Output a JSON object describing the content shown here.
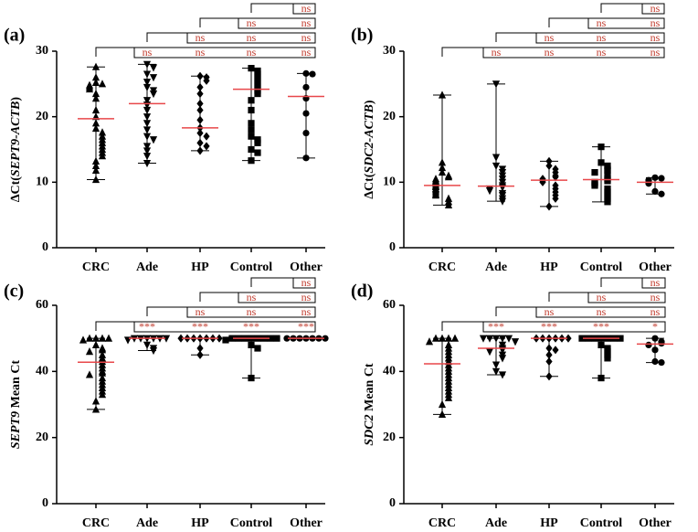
{
  "chart_data": [
    {
      "type": "dot-plot",
      "label": "(a)",
      "ylabel": [
        {
          "text": "∆Ct(",
          "italic": false
        },
        {
          "text": "SEPT9-ACTB",
          "italic": true
        },
        {
          "text": ")",
          "italic": false
        }
      ],
      "categories": [
        "CRC",
        "Ade",
        "HP",
        "Control",
        "Other"
      ],
      "markers": [
        "triangle-up",
        "triangle-down",
        "diamond",
        "square",
        "circle"
      ],
      "points": [
        [
          27.6,
          26,
          25.2,
          25,
          24.8,
          24.5,
          24.2,
          23.5,
          22.8,
          21,
          20,
          19,
          18.2,
          17.6,
          17,
          16.5,
          16,
          15.5,
          15,
          14.5,
          14,
          13.2,
          12.5,
          11.8,
          10.4
        ],
        [
          28,
          27.5,
          26.5,
          26,
          25.3,
          24.5,
          24,
          23.5,
          22.5,
          21.8,
          21,
          20,
          19,
          18,
          17,
          16.5,
          15.5,
          14.8,
          14,
          12.9
        ],
        [
          26.2,
          26,
          25.5,
          24.5,
          23.5,
          22,
          21,
          19.5,
          18.3,
          17.5,
          17,
          16,
          15.5,
          14.8
        ],
        [
          27.4,
          27,
          26.5,
          26,
          25.5,
          25,
          24.5,
          24,
          23.5,
          22.5,
          21,
          19,
          18,
          17,
          16.5,
          16,
          15,
          14.5,
          13.3
        ],
        [
          26.6,
          26.5,
          24.5,
          22.8,
          20.5,
          17.5,
          13.7
        ]
      ],
      "means": [
        19.7,
        22,
        18.3,
        24.2,
        23.1
      ],
      "mins": [
        10.4,
        12.9,
        14.8,
        13.3,
        13.7
      ],
      "maxs": [
        27.6,
        28,
        26.2,
        27.4,
        26.6
      ],
      "ylim": [
        0,
        30
      ],
      "yticks": [
        0,
        10,
        20,
        30
      ],
      "point_color": "#000000",
      "mean_color": "#e8474a",
      "significance_color": "#c0392b",
      "comparisons": [
        {
          "from": 0,
          "labels": [
            "ns",
            "ns",
            "ns",
            "ns"
          ]
        },
        {
          "from": 1,
          "labels": [
            "ns",
            "ns",
            "ns"
          ]
        },
        {
          "from": 2,
          "labels": [
            "ns",
            "ns"
          ]
        },
        {
          "from": 3,
          "labels": [
            "ns"
          ]
        }
      ]
    },
    {
      "type": "dot-plot",
      "label": "(b)",
      "ylabel": [
        {
          "text": "∆Ct(",
          "italic": false
        },
        {
          "text": "SDC2-ACTB",
          "italic": true
        },
        {
          "text": ")",
          "italic": false
        }
      ],
      "categories": [
        "CRC",
        "Ade",
        "HP",
        "Control",
        "Other"
      ],
      "markers": [
        "triangle-up",
        "triangle-down",
        "diamond",
        "square",
        "circle"
      ],
      "points": [
        [
          23.3,
          13,
          12.2,
          11.5,
          11,
          10.8,
          10.5,
          10.2,
          10,
          9.8,
          9.5,
          9.3,
          9,
          8.8,
          8.5,
          8.2,
          8,
          7.5,
          7,
          6.5
        ],
        [
          25,
          13.8,
          12.5,
          12,
          11.5,
          11,
          10.5,
          10,
          9.5,
          9.2,
          9,
          8.7,
          8.3,
          8,
          7.5,
          7.1
        ],
        [
          13.2,
          12.5,
          12,
          11.5,
          11,
          10.8,
          10.5,
          10.2,
          10,
          9.5,
          9,
          8.5,
          8,
          7.5,
          6.3
        ],
        [
          15.4,
          13,
          12.5,
          12,
          11.8,
          11.5,
          11,
          10.5,
          10.2,
          10,
          9.8,
          9.5,
          9,
          8.5,
          8,
          7.5,
          7
        ],
        [
          10.7,
          10.6,
          10.3,
          10,
          9.8,
          8.6,
          8.2
        ]
      ],
      "means": [
        9.5,
        9.4,
        10.3,
        10.4,
        10
      ],
      "mins": [
        6.5,
        7.1,
        6.3,
        7,
        8.2
      ],
      "maxs": [
        23.3,
        25,
        13.2,
        15.4,
        10.7
      ],
      "ylim": [
        0,
        30
      ],
      "yticks": [
        0,
        10,
        20,
        30
      ],
      "point_color": "#000000",
      "mean_color": "#e8474a",
      "significance_color": "#c0392b",
      "comparisons": [
        {
          "from": 0,
          "labels": [
            "ns",
            "ns",
            "ns",
            "ns"
          ]
        },
        {
          "from": 1,
          "labels": [
            "ns",
            "ns",
            "ns"
          ]
        },
        {
          "from": 2,
          "labels": [
            "ns",
            "ns"
          ]
        },
        {
          "from": 3,
          "labels": [
            "ns"
          ]
        }
      ]
    },
    {
      "type": "dot-plot",
      "label": "(c)",
      "ylabel": [
        {
          "text": "SEPT9",
          "italic": true
        },
        {
          "text": " Mean Ct",
          "italic": false
        }
      ],
      "categories": [
        "CRC",
        "Ade",
        "HP",
        "Control",
        "Other"
      ],
      "markers": [
        "triangle-up",
        "triangle-down",
        "diamond",
        "square",
        "circle"
      ],
      "points": [
        [
          50,
          50,
          50,
          50,
          49.5,
          48,
          47,
          46.5,
          46,
          45,
          44,
          43,
          42,
          41,
          40,
          39.5,
          39,
          38,
          37,
          36,
          35,
          34,
          33,
          31,
          28.5
        ],
        [
          50,
          50,
          50,
          50,
          50,
          50,
          49.5,
          48,
          47,
          46.3
        ],
        [
          50,
          50,
          50,
          50,
          50,
          50,
          50,
          47,
          45
        ],
        [
          50,
          50,
          50,
          50,
          50,
          50,
          50,
          50,
          49.5,
          48,
          47,
          38
        ],
        [
          50,
          50,
          50,
          50,
          50,
          50,
          50
        ]
      ],
      "means": [
        42.8,
        50,
        50,
        50,
        50
      ],
      "mins": [
        28.5,
        46.3,
        45,
        38,
        50
      ],
      "maxs": [
        50,
        50,
        50,
        50,
        50
      ],
      "ylim": [
        0,
        60
      ],
      "yticks": [
        0,
        20,
        40,
        60
      ],
      "point_color": "#000000",
      "mean_color": "#e8474a",
      "significance_color": "#c0392b",
      "comparisons": [
        {
          "from": 0,
          "labels": [
            "***",
            "***",
            "***",
            "***"
          ]
        },
        {
          "from": 1,
          "labels": [
            "ns",
            "ns",
            "ns"
          ]
        },
        {
          "from": 2,
          "labels": [
            "ns",
            "ns"
          ]
        },
        {
          "from": 3,
          "labels": [
            "ns"
          ]
        }
      ]
    },
    {
      "type": "dot-plot",
      "label": "(d)",
      "ylabel": [
        {
          "text": "SDC2",
          "italic": true
        },
        {
          "text": " Mean Ct",
          "italic": false
        }
      ],
      "categories": [
        "CRC",
        "Ade",
        "HP",
        "Control",
        "Other"
      ],
      "markers": [
        "triangle-up",
        "triangle-down",
        "diamond",
        "square",
        "circle"
      ],
      "points": [
        [
          50,
          50,
          50,
          50,
          49,
          48,
          47,
          46,
          45,
          44,
          43,
          42,
          41,
          40,
          39,
          38,
          37,
          36,
          35,
          34,
          33,
          32,
          30,
          27
        ],
        [
          50,
          50,
          50,
          50,
          50,
          49,
          48,
          47,
          46.5,
          46,
          45,
          44,
          42,
          40,
          39
        ],
        [
          50,
          50,
          50,
          50,
          50,
          50,
          47,
          46.5,
          45,
          43,
          38.5
        ],
        [
          50,
          50,
          50,
          50,
          50,
          50,
          50,
          48,
          47,
          46,
          45,
          44,
          38
        ],
        [
          50,
          49,
          48.5,
          48,
          46.5,
          43,
          42.7
        ]
      ],
      "means": [
        42.3,
        47,
        50,
        50,
        48.3
      ],
      "mins": [
        27,
        39,
        38.5,
        38,
        42.7
      ],
      "maxs": [
        50,
        50,
        50,
        50,
        50
      ],
      "ylim": [
        0,
        60
      ],
      "yticks": [
        0,
        20,
        40,
        60
      ],
      "point_color": "#000000",
      "mean_color": "#e8474a",
      "significance_color": "#c0392b",
      "comparisons": [
        {
          "from": 0,
          "labels": [
            "***",
            "***",
            "***",
            "*"
          ]
        },
        {
          "from": 1,
          "labels": [
            "ns",
            "ns",
            "ns"
          ]
        },
        {
          "from": 2,
          "labels": [
            "ns",
            "ns"
          ]
        },
        {
          "from": 3,
          "labels": [
            "ns"
          ]
        }
      ]
    }
  ]
}
